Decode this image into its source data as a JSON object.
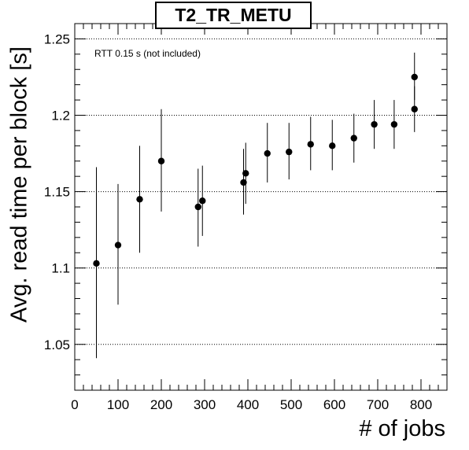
{
  "chart_data": {
    "type": "scatter",
    "title": "T2_TR_METU",
    "xlabel": "# of jobs",
    "ylabel": "Avg. read time per block [s]",
    "annotation": "RTT 0.15 s (not included)",
    "xlim": [
      0,
      860
    ],
    "ylim": [
      1.02,
      1.26
    ],
    "x_ticks": [
      0,
      100,
      200,
      300,
      400,
      500,
      600,
      700,
      800
    ],
    "x_tick_labels": [
      "0",
      "100",
      "200",
      "300",
      "400",
      "500",
      "600",
      "700",
      "800"
    ],
    "y_ticks": [
      1.05,
      1.1,
      1.15,
      1.2,
      1.25
    ],
    "y_tick_labels": [
      "1.05",
      "1.1",
      "1.15",
      "1.2",
      "1.25"
    ],
    "grid": "horizontal dotted",
    "marker_color": "#000000",
    "points": [
      {
        "x": 50,
        "y": 1.103,
        "err_low": 1.041,
        "err_high": 1.166
      },
      {
        "x": 100,
        "y": 1.115,
        "err_low": 1.076,
        "err_high": 1.155
      },
      {
        "x": 150,
        "y": 1.145,
        "err_low": 1.11,
        "err_high": 1.18
      },
      {
        "x": 200,
        "y": 1.17,
        "err_low": 1.137,
        "err_high": 1.204
      },
      {
        "x": 285,
        "y": 1.14,
        "err_low": 1.114,
        "err_high": 1.165
      },
      {
        "x": 295,
        "y": 1.144,
        "err_low": 1.121,
        "err_high": 1.167
      },
      {
        "x": 390,
        "y": 1.156,
        "err_low": 1.135,
        "err_high": 1.178
      },
      {
        "x": 395,
        "y": 1.162,
        "err_low": 1.142,
        "err_high": 1.182
      },
      {
        "x": 445,
        "y": 1.175,
        "err_low": 1.156,
        "err_high": 1.195
      },
      {
        "x": 495,
        "y": 1.176,
        "err_low": 1.158,
        "err_high": 1.195
      },
      {
        "x": 545,
        "y": 1.181,
        "err_low": 1.164,
        "err_high": 1.199
      },
      {
        "x": 595,
        "y": 1.18,
        "err_low": 1.164,
        "err_high": 1.197
      },
      {
        "x": 645,
        "y": 1.185,
        "err_low": 1.169,
        "err_high": 1.201
      },
      {
        "x": 692,
        "y": 1.194,
        "err_low": 1.178,
        "err_high": 1.21
      },
      {
        "x": 738,
        "y": 1.194,
        "err_low": 1.178,
        "err_high": 1.21
      },
      {
        "x": 785,
        "y": 1.204,
        "err_low": 1.189,
        "err_high": 1.219
      },
      {
        "x": 785,
        "y": 1.225,
        "err_low": 1.21,
        "err_high": 1.241
      }
    ]
  }
}
